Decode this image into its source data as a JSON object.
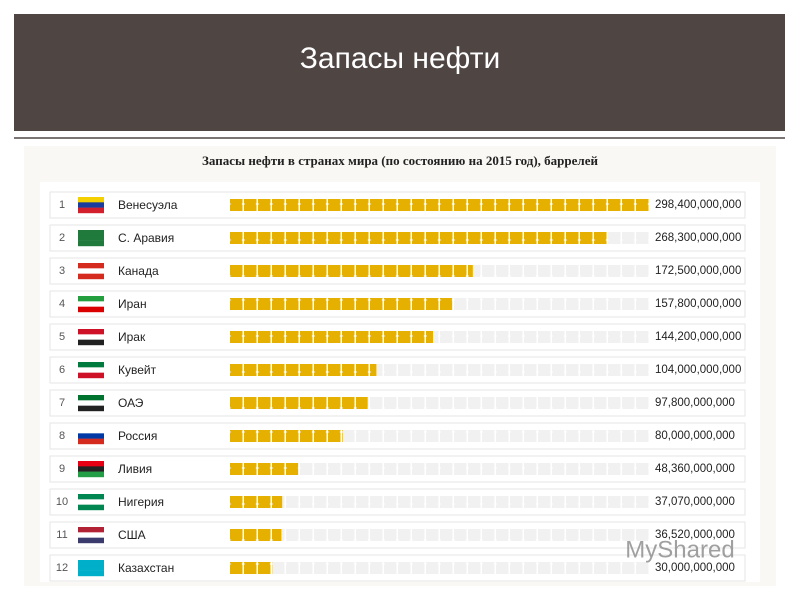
{
  "chart_data": {
    "type": "hbar",
    "title": "Запасы нефти",
    "subtitle": "Запасы нефти в странах мира (по состоянию на 2015 год), баррелей",
    "ranks": [
      "1",
      "2",
      "3",
      "4",
      "5",
      "6",
      "7",
      "8",
      "9",
      "10",
      "11",
      "12"
    ],
    "categories": [
      "Венесуэла",
      "С. Аравия",
      "Канада",
      "Иран",
      "Ирак",
      "Кувейт",
      "ОАЭ",
      "Россия",
      "Ливия",
      "Нигерия",
      "США",
      "Казахстан"
    ],
    "values": [
      298400000000,
      268300000000,
      172500000000,
      157800000000,
      144200000000,
      104000000000,
      97800000000,
      80000000000,
      48360000000,
      37070000000,
      36520000000,
      30000000000
    ],
    "value_labels": [
      "298,400,000,000",
      "268,300,000,000",
      "172,500,000,000",
      "157,800,000,000",
      "144,200,000,000",
      "104,000,000,000",
      "97,800,000,000",
      "80,000,000,000",
      "48,360,000,000",
      "37,070,000,000",
      "36,520,000,000",
      "30,000,000,000"
    ],
    "color": "#e6b000",
    "watermark": "MyShared"
  }
}
